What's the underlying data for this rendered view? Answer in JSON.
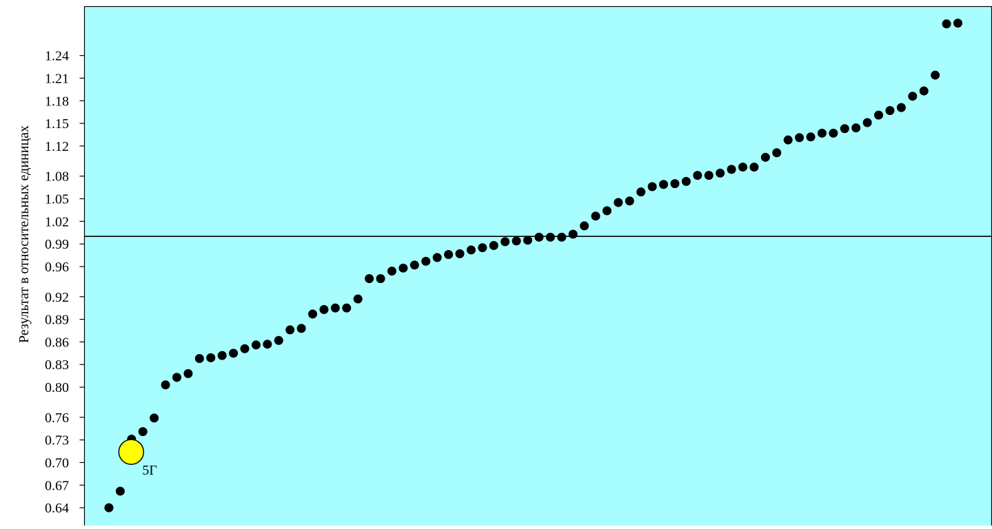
{
  "chart_data": {
    "type": "scatter",
    "title": "",
    "xlabel": "",
    "ylabel": "Результат в относительных единицах",
    "ylim": [
      0.615,
      1.305
    ],
    "yticks": [
      "0.64",
      "0.67",
      "0.70",
      "0.73",
      "0.76",
      "0.80",
      "0.83",
      "0.86",
      "0.89",
      "0.92",
      "0.96",
      "0.99",
      "1.02",
      "1.05",
      "1.08",
      "1.12",
      "1.15",
      "1.18",
      "1.21",
      "1.24"
    ],
    "reference_line": 1.0,
    "colors": {
      "plot_background": "#a8fdff",
      "point": "#000000",
      "highlight": "#ffff00",
      "highlight_stroke": "#000000",
      "line": "#000000"
    },
    "series": [
      {
        "values": [
          0.64,
          0.662,
          0.731,
          0.741,
          0.759,
          0.803,
          0.813,
          0.818,
          0.838,
          0.839,
          0.842,
          0.845,
          0.851,
          0.856,
          0.857,
          0.862,
          0.876,
          0.878,
          0.897,
          0.903,
          0.905,
          0.905,
          0.917,
          0.944,
          0.944,
          0.954,
          0.958,
          0.962,
          0.967,
          0.972,
          0.976,
          0.977,
          0.982,
          0.985,
          0.988,
          0.993,
          0.994,
          0.995,
          0.999,
          0.999,
          0.999,
          1.003,
          1.014,
          1.027,
          1.034,
          1.045,
          1.047,
          1.059,
          1.066,
          1.069,
          1.07,
          1.073,
          1.081,
          1.081,
          1.084,
          1.089,
          1.092,
          1.092,
          1.105,
          1.111,
          1.128,
          1.131,
          1.132,
          1.137,
          1.137,
          1.143,
          1.144,
          1.151,
          1.161,
          1.167,
          1.171,
          1.186,
          1.193,
          1.214,
          1.282,
          1.283
        ]
      }
    ],
    "highlight_point": {
      "x": 3,
      "y": 0.714,
      "label": "5Г"
    }
  }
}
